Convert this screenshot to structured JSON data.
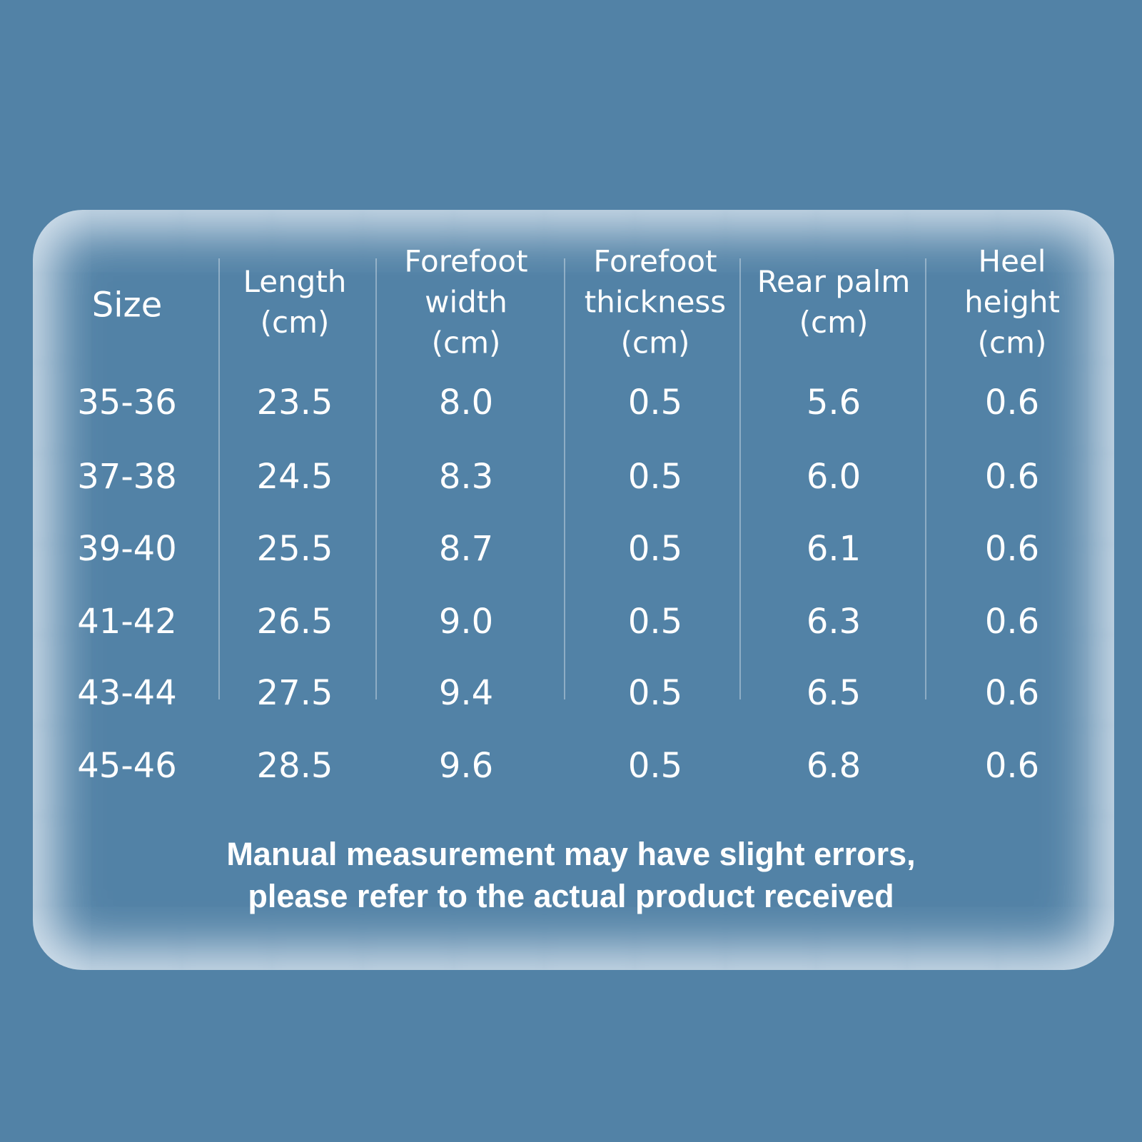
{
  "table": {
    "headers": [
      [
        "Size"
      ],
      [
        "Length",
        "(cm)"
      ],
      [
        "Forefoot",
        "width",
        "(cm)"
      ],
      [
        "Forefoot",
        "thickness",
        "(cm)"
      ],
      [
        "Rear palm",
        "(cm)"
      ],
      [
        "Heel",
        "height",
        "(cm)"
      ]
    ],
    "rows": [
      [
        "35-36",
        "23.5",
        "8.0",
        "0.5",
        "5.6",
        "0.6"
      ],
      [
        "37-38",
        "24.5",
        "8.3",
        "0.5",
        "6.0",
        "0.6"
      ],
      [
        "39-40",
        "25.5",
        "8.7",
        "0.5",
        "6.1",
        "0.6"
      ],
      [
        "41-42",
        "26.5",
        "9.0",
        "0.5",
        "6.3",
        "0.6"
      ],
      [
        "43-44",
        "27.5",
        "9.4",
        "0.5",
        "6.5",
        "0.6"
      ],
      [
        "45-46",
        "28.5",
        "9.6",
        "0.5",
        "6.8",
        "0.6"
      ]
    ]
  },
  "note": [
    "Manual measurement may have slight errors,",
    "please refer to the actual product received"
  ]
}
